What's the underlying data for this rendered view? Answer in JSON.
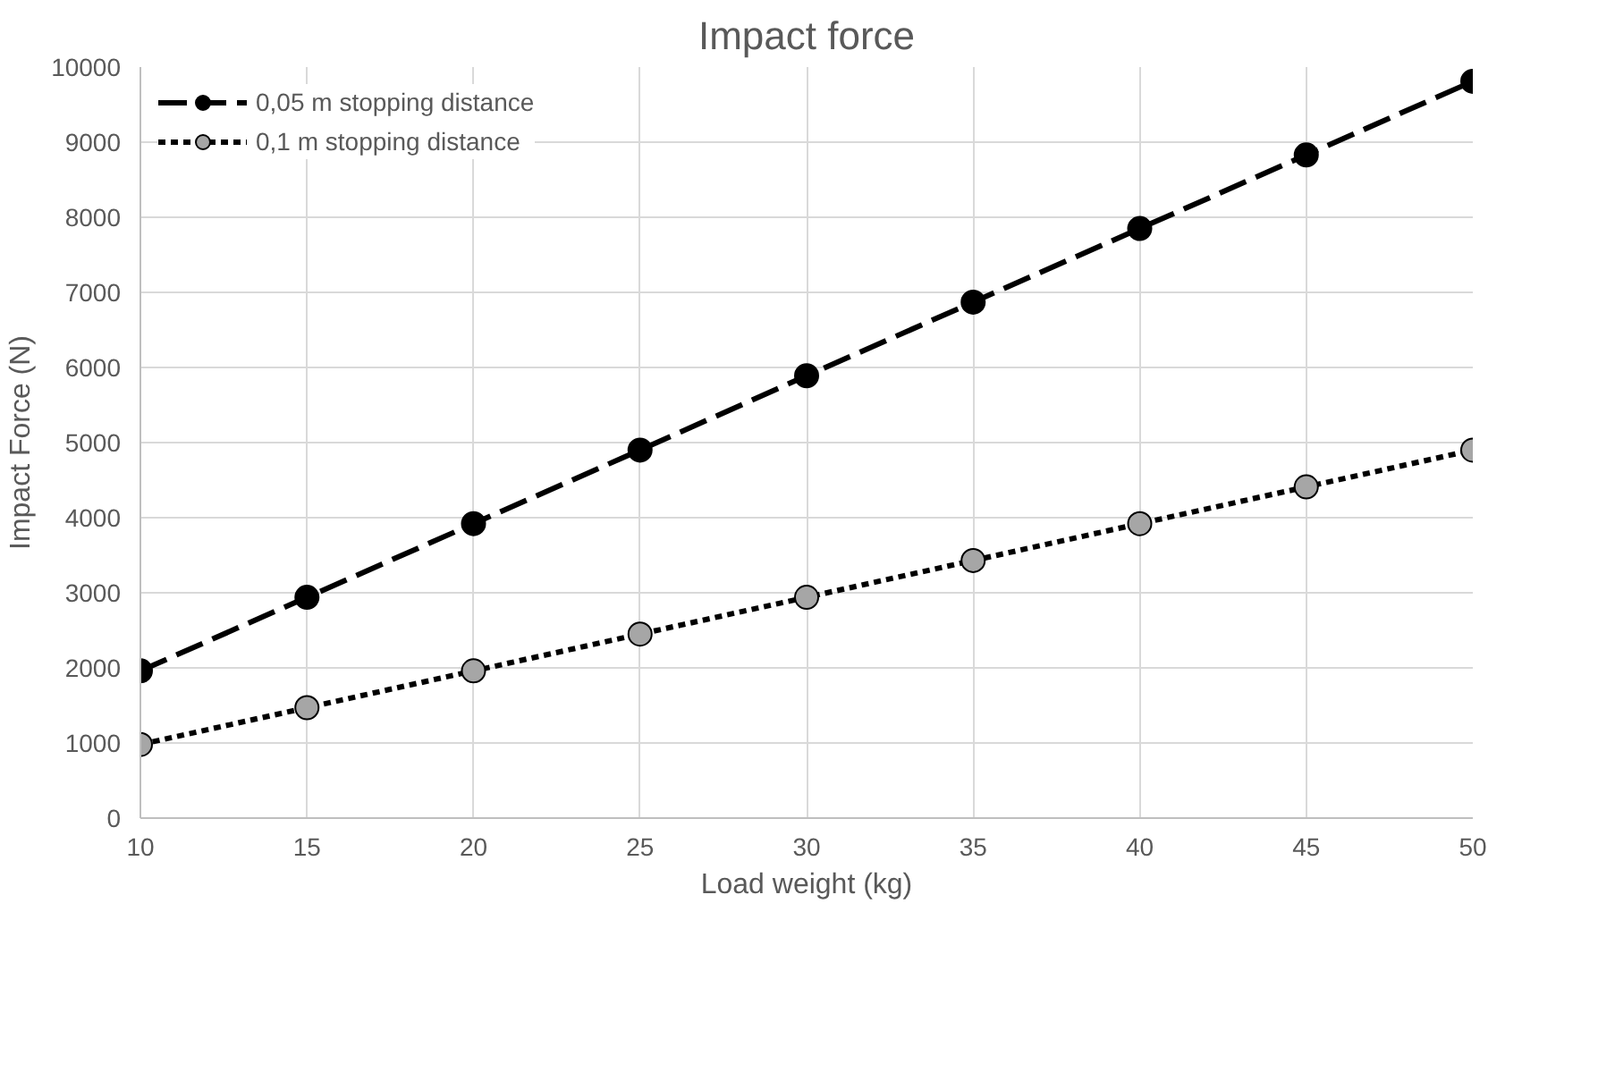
{
  "chart_data": {
    "type": "line",
    "title": "Impact force",
    "xlabel": "Load weight (kg)",
    "ylabel": "Impact Force (N)",
    "x": [
      10,
      15,
      20,
      25,
      30,
      35,
      40,
      45,
      50
    ],
    "series": [
      {
        "name": "0,05 m stopping distance",
        "color": "#000000",
        "line_style": "dashed",
        "values": [
          1960,
          2940,
          3920,
          4900,
          5890,
          6870,
          7850,
          8830,
          9810
        ]
      },
      {
        "name": "0,1 m stopping distance",
        "color": "#a6a6a6",
        "line_style": "dotted",
        "values": [
          980,
          1470,
          1960,
          2450,
          2940,
          3430,
          3920,
          4410,
          4900
        ]
      }
    ],
    "xlim": [
      10,
      50
    ],
    "xticks": [
      10,
      15,
      20,
      25,
      30,
      35,
      40,
      45,
      50
    ],
    "ylim": [
      0,
      10000
    ],
    "yticks": [
      0,
      1000,
      2000,
      3000,
      4000,
      5000,
      6000,
      7000,
      8000,
      9000,
      10000
    ],
    "grid": true,
    "legend": "top left",
    "marker": "circle"
  }
}
